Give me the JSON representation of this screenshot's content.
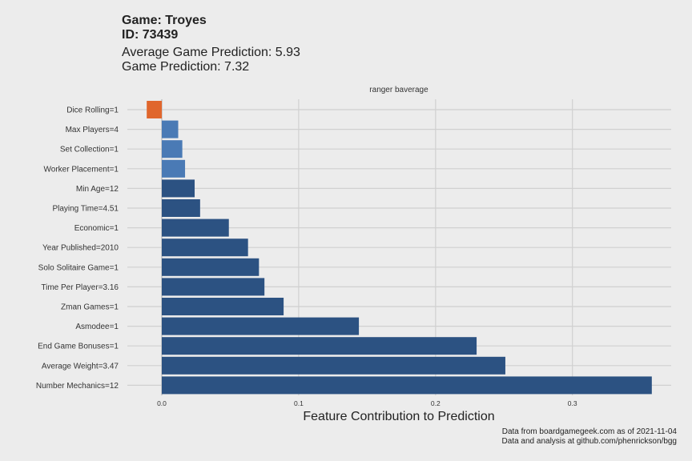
{
  "header": {
    "title_line1": "Game: Troyes",
    "title_line2": "ID: 73439",
    "subtitle_line1": "Average Game Prediction: 5.93",
    "subtitle_line2": "Game Prediction: 7.32"
  },
  "caption": {
    "line1": "Data from boardgamegeek.com as of 2021-11-04",
    "line2": "Data and analysis at github.com/phenrickson/bgg"
  },
  "colors": {
    "background": "#ececec",
    "grid": "#d0d0d0",
    "positive": "#2c5282",
    "positive_light": "#4a7ab5",
    "negative": "#e0662c"
  },
  "chart_data": {
    "type": "bar",
    "orientation": "horizontal",
    "facet_label": "ranger baverage",
    "xlabel": "Feature Contribution to Prediction",
    "ylabel": "",
    "xlim": [
      -0.03,
      0.38
    ],
    "xticks": [
      0.0,
      0.1,
      0.2,
      0.3
    ],
    "xtick_labels": [
      "0.0",
      "0.1",
      "0.2",
      "0.3"
    ],
    "grid": true,
    "categories": [
      "Dice Rolling=1",
      "Max Players=4",
      "Set Collection=1",
      "Worker Placement=1",
      "Min Age=12",
      "Playing Time=4.51",
      "Economic=1",
      "Year Published=2010",
      "Solo Solitaire Game=1",
      "Time Per Player=3.16",
      "Zman Games=1",
      "Asmodee=1",
      "End Game Bonuses=1",
      "Average Weight=3.47",
      "Number Mechanics=12"
    ],
    "values": [
      -0.011,
      0.012,
      0.015,
      0.017,
      0.024,
      0.028,
      0.049,
      0.063,
      0.071,
      0.075,
      0.089,
      0.144,
      0.23,
      0.251,
      0.358
    ],
    "lighter_bars": [
      1,
      2,
      3
    ]
  }
}
